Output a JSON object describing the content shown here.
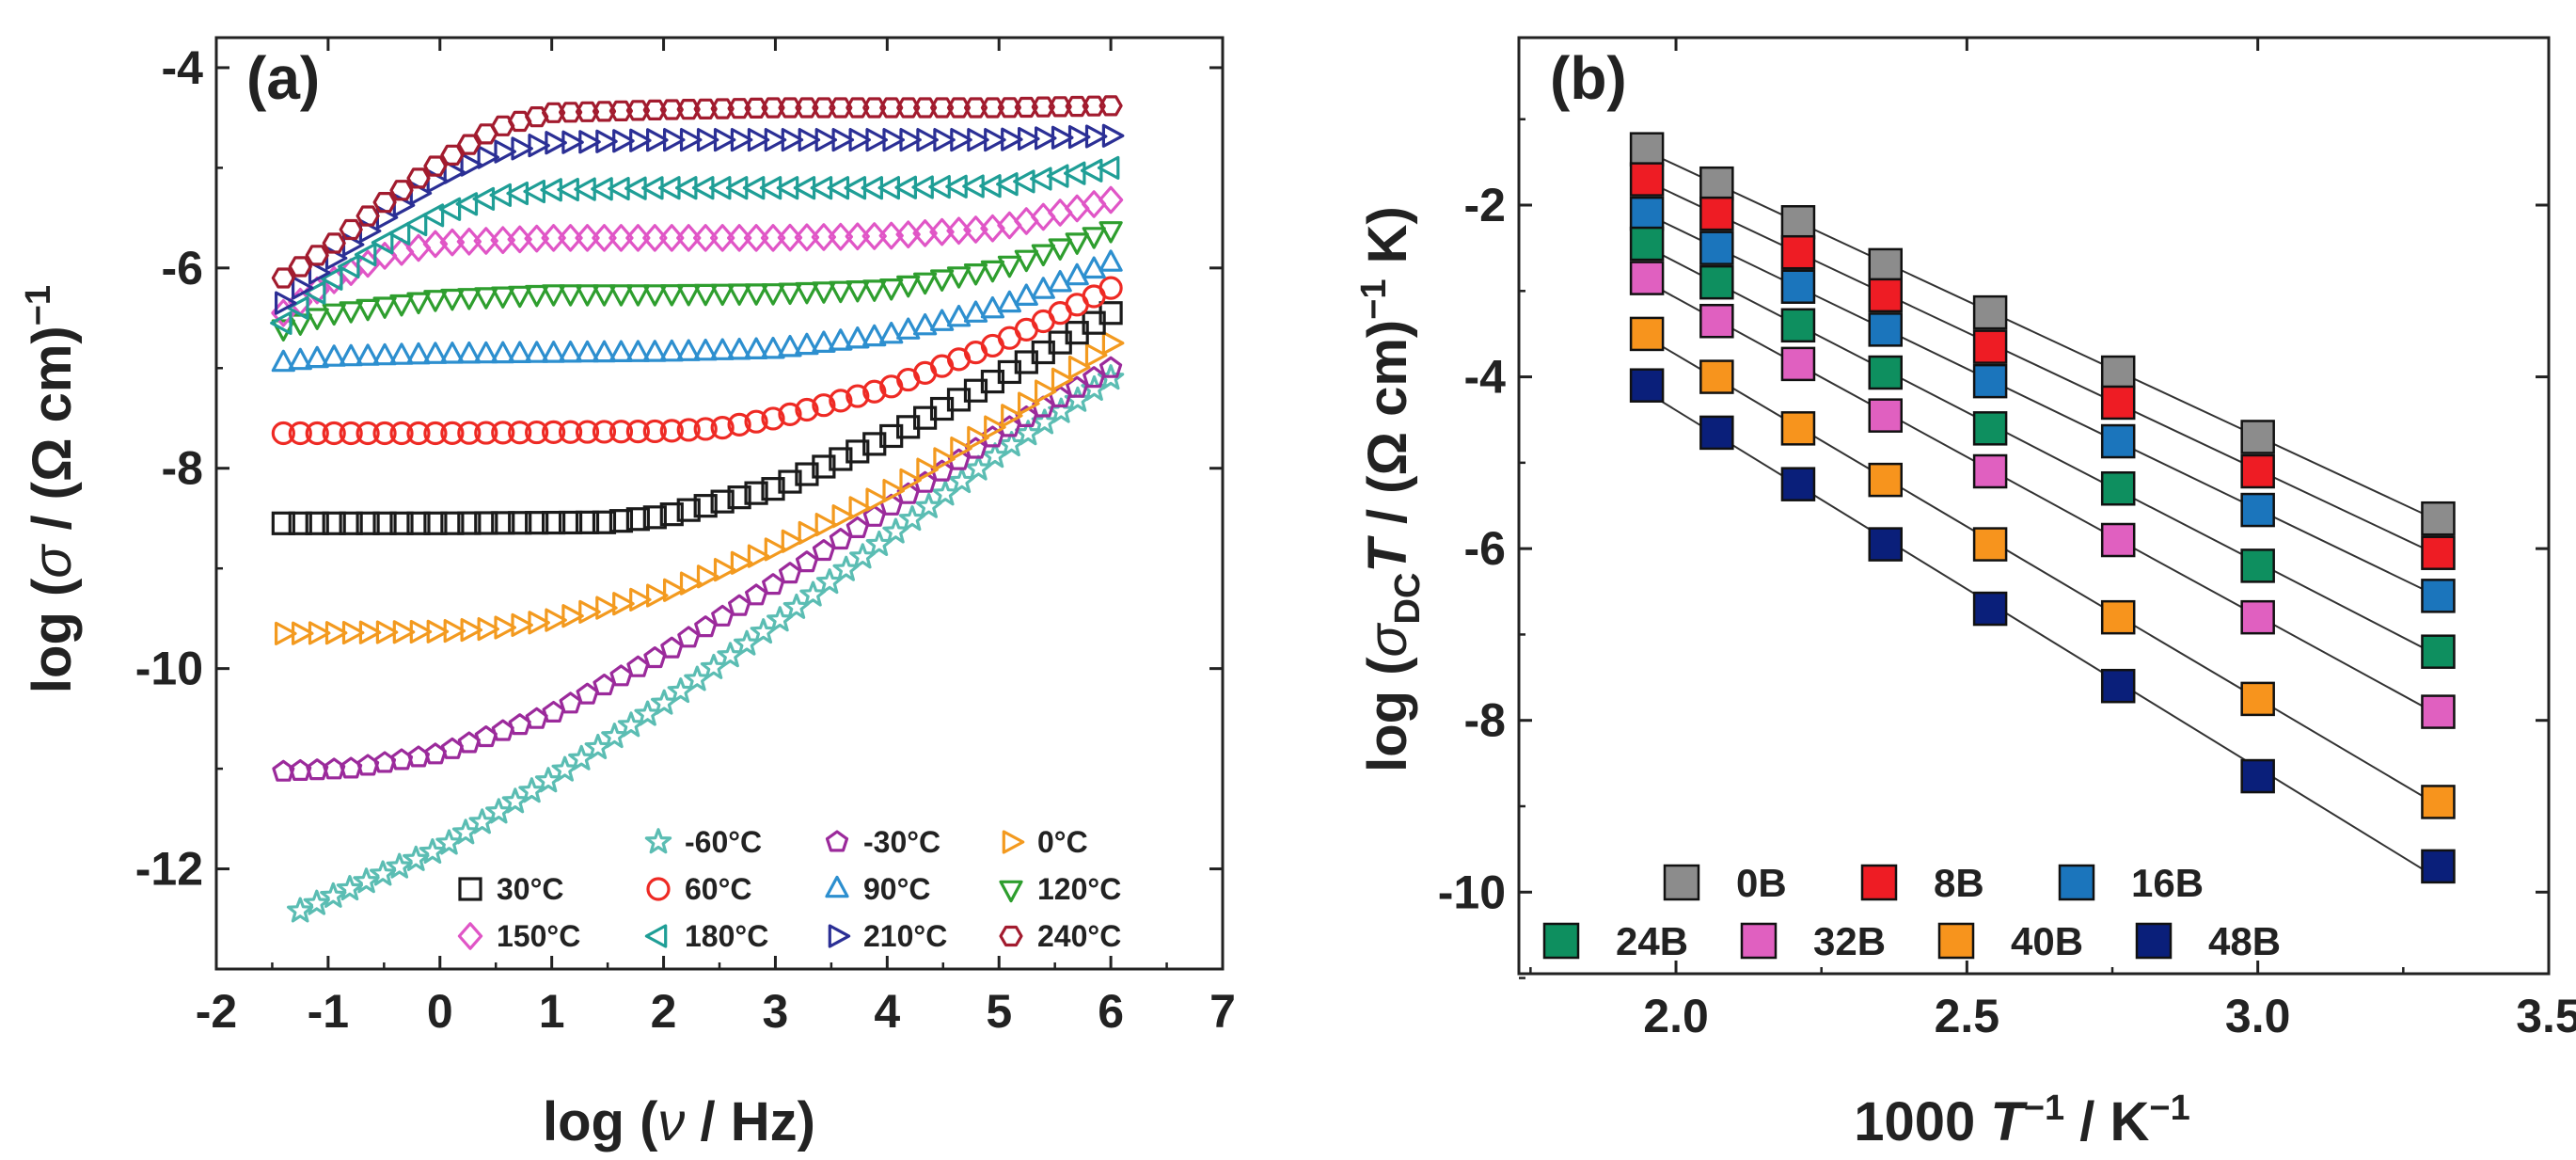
{
  "chart_data": [
    {
      "type": "scatter",
      "panel_label": "(a)",
      "xlabel": {
        "prefix": "log (",
        "symbol": "ν",
        "suffix": " / Hz)"
      },
      "ylabel": {
        "prefix": "log (",
        "symbol": "σ",
        "suffix": " / (Ω cm)",
        "sup": "−1"
      },
      "xlim": [
        -2,
        7
      ],
      "ylim": [
        -13,
        -3.7
      ],
      "xticks": [
        -2,
        -1,
        0,
        1,
        2,
        3,
        4,
        5,
        6,
        7
      ],
      "yticks": [
        -12,
        -10,
        -8,
        -6,
        -4
      ],
      "legend_position": "bottom-right",
      "x_start": -1.4,
      "x_end": 6.0,
      "n_points": 50,
      "series": [
        {
          "name": "-60°C",
          "marker": "star",
          "color": "#5BBDB3",
          "x_start": -1.25,
          "pts": [
            [
              -1.25,
              -12.42
            ],
            [
              0,
              -11.8
            ],
            [
              1,
              -11.1
            ],
            [
              2,
              -10.35
            ],
            [
              3,
              -9.55
            ],
            [
              4,
              -8.7
            ],
            [
              5,
              -7.85
            ],
            [
              6,
              -7.1
            ]
          ]
        },
        {
          "name": "-30°C",
          "marker": "pentagon",
          "color": "#9B2A9B",
          "pts": [
            [
              -1.4,
              -11.03
            ],
            [
              -0.8,
              -11.0
            ],
            [
              0,
              -10.85
            ],
            [
              1,
              -10.45
            ],
            [
              2,
              -9.85
            ],
            [
              3,
              -9.15
            ],
            [
              4,
              -8.4
            ],
            [
              5,
              -7.65
            ],
            [
              6,
              -7.0
            ]
          ]
        },
        {
          "name": "0°C",
          "marker": "tri-right",
          "color": "#F39A1F",
          "pts": [
            [
              -1.4,
              -9.65
            ],
            [
              0,
              -9.63
            ],
            [
              0.5,
              -9.6
            ],
            [
              1,
              -9.52
            ],
            [
              2,
              -9.25
            ],
            [
              3,
              -8.8
            ],
            [
              4,
              -8.25
            ],
            [
              5,
              -7.55
            ],
            [
              6,
              -6.75
            ]
          ]
        },
        {
          "name": "30°C",
          "marker": "square",
          "color": "#1A1A1A",
          "pts": [
            [
              -1.4,
              -8.55
            ],
            [
              0,
              -8.55
            ],
            [
              1.5,
              -8.54
            ],
            [
              2,
              -8.48
            ],
            [
              3,
              -8.2
            ],
            [
              4,
              -7.7
            ],
            [
              5,
              -7.1
            ],
            [
              6,
              -6.45
            ]
          ]
        },
        {
          "name": "60°C",
          "marker": "circle",
          "color": "#EE2A24",
          "pts": [
            [
              -1.4,
              -7.65
            ],
            [
              0,
              -7.65
            ],
            [
              2,
              -7.63
            ],
            [
              2.5,
              -7.6
            ],
            [
              3,
              -7.5
            ],
            [
              4,
              -7.2
            ],
            [
              5,
              -6.75
            ],
            [
              6,
              -6.2
            ]
          ]
        },
        {
          "name": "90°C",
          "marker": "tri-up",
          "color": "#2D8FCF",
          "pts": [
            [
              -1.4,
              -6.95
            ],
            [
              -1,
              -6.9
            ],
            [
              0,
              -6.87
            ],
            [
              2,
              -6.85
            ],
            [
              3,
              -6.82
            ],
            [
              4,
              -6.68
            ],
            [
              5,
              -6.4
            ],
            [
              6,
              -5.95
            ]
          ]
        },
        {
          "name": "120°C",
          "marker": "tri-down",
          "color": "#2E9E2E",
          "pts": [
            [
              -1.4,
              -6.6
            ],
            [
              -1,
              -6.45
            ],
            [
              0,
              -6.3
            ],
            [
              1,
              -6.25
            ],
            [
              2,
              -6.25
            ],
            [
              3,
              -6.24
            ],
            [
              4,
              -6.2
            ],
            [
              5,
              -6.0
            ],
            [
              6,
              -5.62
            ]
          ]
        },
        {
          "name": "150°C",
          "marker": "diamond",
          "color": "#E055C6",
          "pts": [
            [
              -1.4,
              -6.45
            ],
            [
              -1,
              -6.15
            ],
            [
              -0.5,
              -5.88
            ],
            [
              0,
              -5.75
            ],
            [
              1,
              -5.7
            ],
            [
              2,
              -5.7
            ],
            [
              3,
              -5.7
            ],
            [
              4,
              -5.68
            ],
            [
              5,
              -5.6
            ],
            [
              6,
              -5.32
            ]
          ]
        },
        {
          "name": "180°C",
          "marker": "tri-left",
          "color": "#1F9E96",
          "pts": [
            [
              -1.4,
              -6.55
            ],
            [
              -1,
              -6.15
            ],
            [
              -0.5,
              -5.75
            ],
            [
              0,
              -5.45
            ],
            [
              0.5,
              -5.28
            ],
            [
              1,
              -5.22
            ],
            [
              2,
              -5.2
            ],
            [
              3,
              -5.2
            ],
            [
              4,
              -5.2
            ],
            [
              5,
              -5.18
            ],
            [
              6,
              -5.0
            ]
          ]
        },
        {
          "name": "210°C",
          "marker": "tri-right",
          "color": "#2B2F95",
          "pts": [
            [
              -1.4,
              -6.35
            ],
            [
              -1,
              -5.95
            ],
            [
              -0.5,
              -5.5
            ],
            [
              0,
              -5.1
            ],
            [
              0.5,
              -4.85
            ],
            [
              1,
              -4.75
            ],
            [
              2,
              -4.72
            ],
            [
              3,
              -4.72
            ],
            [
              4,
              -4.72
            ],
            [
              5,
              -4.72
            ],
            [
              6,
              -4.68
            ]
          ]
        },
        {
          "name": "240°C",
          "marker": "hexagon",
          "color": "#A21B2E",
          "pts": [
            [
              -1.4,
              -6.1
            ],
            [
              -1,
              -5.8
            ],
            [
              -0.5,
              -5.35
            ],
            [
              0,
              -4.95
            ],
            [
              0.5,
              -4.6
            ],
            [
              1,
              -4.45
            ],
            [
              2,
              -4.42
            ],
            [
              3,
              -4.4
            ],
            [
              4,
              -4.4
            ],
            [
              5,
              -4.4
            ],
            [
              6,
              -4.38
            ]
          ]
        }
      ]
    },
    {
      "type": "scatter",
      "panel_label": "(b)",
      "xlabel": {
        "prefix": "1000 ",
        "italic": "T",
        "sup": "−1",
        "suffix": " / K",
        "sup2": "−1"
      },
      "ylabel": {
        "prefix": "log (",
        "symbol": "σ",
        "sub": "DC",
        "italic": "T",
        "suffix": " / (Ω cm)",
        "sup": "−1",
        "tail": " K)"
      },
      "xlim": [
        1.73,
        3.5
      ],
      "ylim": [
        -10.95,
        -0.05
      ],
      "xticks": [
        2.0,
        2.5,
        3.0,
        3.5
      ],
      "xtick_labels": [
        "2.0",
        "2.5",
        "3.0",
        "3.5"
      ],
      "yticks": [
        -10,
        -8,
        -6,
        -4,
        -2
      ],
      "legend_position": "bottom",
      "x": [
        1.95,
        2.07,
        2.21,
        2.36,
        2.54,
        2.76,
        3.0,
        3.31
      ],
      "series": [
        {
          "name": "0B",
          "color": "#8C8C8C",
          "values": [
            -1.35,
            -1.75,
            -2.2,
            -2.7,
            -3.25,
            -3.95,
            -4.7,
            -5.65
          ]
        },
        {
          "name": "8B",
          "color": "#EE1C24",
          "values": [
            -1.7,
            -2.1,
            -2.55,
            -3.05,
            -3.65,
            -4.3,
            -5.1,
            -6.05
          ]
        },
        {
          "name": "16B",
          "color": "#1B75BC",
          "values": [
            -2.1,
            -2.5,
            -2.95,
            -3.45,
            -4.05,
            -4.75,
            -5.55,
            -6.55
          ]
        },
        {
          "name": "24B",
          "color": "#0E8F5F",
          "values": [
            -2.45,
            -2.9,
            -3.4,
            -3.95,
            -4.6,
            -5.3,
            -6.2,
            -7.2
          ]
        },
        {
          "name": "32B",
          "color": "#E060C0",
          "values": [
            -2.85,
            -3.35,
            -3.85,
            -4.45,
            -5.1,
            -5.9,
            -6.8,
            -7.9
          ]
        },
        {
          "name": "40B",
          "color": "#F7941D",
          "values": [
            -3.5,
            -4.0,
            -4.6,
            -5.2,
            -5.95,
            -6.8,
            -7.75,
            -8.95
          ]
        },
        {
          "name": "48B",
          "color": "#0A1F7A",
          "values": [
            -4.1,
            -4.65,
            -5.25,
            -5.95,
            -6.7,
            -7.6,
            -8.65,
            -9.7
          ]
        }
      ]
    }
  ]
}
